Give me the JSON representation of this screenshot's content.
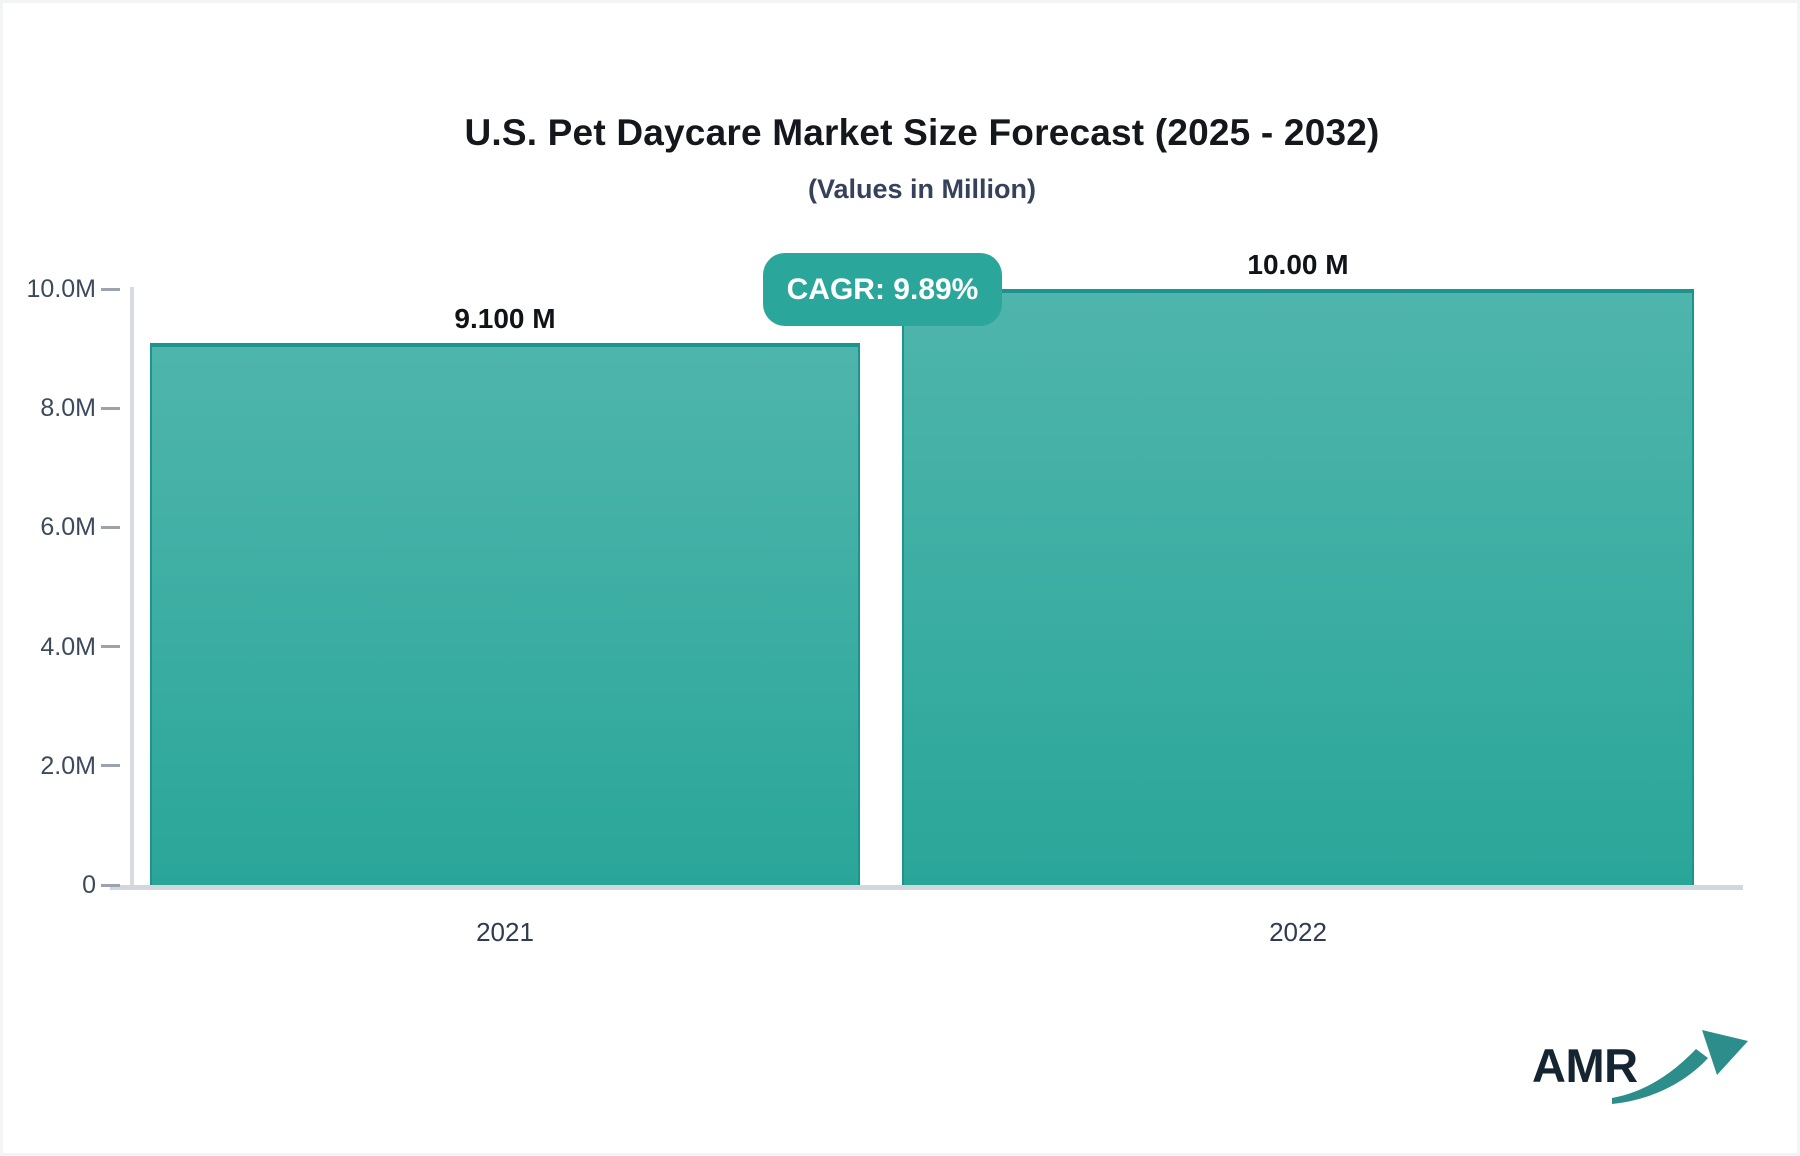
{
  "page": {
    "cagr_badge_label": "CAGR: 9.89%",
    "logo_text": "AMR"
  },
  "chart_data": {
    "type": "bar",
    "title": "U.S. Pet Daycare Market Size Forecast (2025 - 2032)",
    "subtitle": "(Values in Million)",
    "categories": [
      "2021",
      "2022"
    ],
    "values": [
      9.1,
      10.0
    ],
    "value_labels": [
      "9.100 M",
      "10.00 M"
    ],
    "annotation": "CAGR: 9.89%",
    "ylim": [
      0,
      10
    ],
    "y_ticks": [
      {
        "label": "10.0M",
        "value": 10
      },
      {
        "label": "8.0M",
        "value": 8
      },
      {
        "label": "6.0M",
        "value": 6
      },
      {
        "label": "4.0M",
        "value": 4
      },
      {
        "label": "2.0M",
        "value": 2
      },
      {
        "label": "0",
        "value": 0
      }
    ],
    "grid": "off",
    "legend": "none"
  },
  "colors": {
    "bar_gradient_top": "#4FB5AC",
    "bar_gradient_bottom": "#2AA699",
    "bar_border": "#1A948C",
    "badge_bg": "#2AA79A",
    "logo_arrow": "#2D8D8B",
    "logo_text": "#142430"
  }
}
